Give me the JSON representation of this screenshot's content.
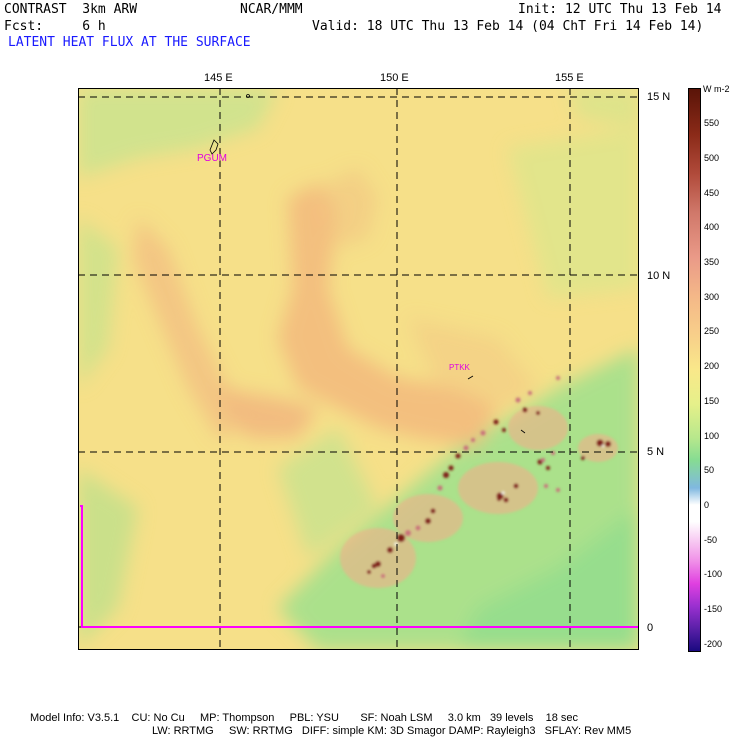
{
  "header": {
    "model": "CONTRAST  3km ARW",
    "org": "NCAR/MMM",
    "init": "Init: 12 UTC Thu 13 Feb 14",
    "fcst": "Fcst:     6 h",
    "valid": "Valid: 18 UTC Thu 13 Feb 14 (04 ChT Fri 14 Feb 14)",
    "field": "LATENT HEAT FLUX AT THE SURFACE"
  },
  "map": {
    "lon_labels": [
      "145 E",
      "150 E",
      "155 E"
    ],
    "lat_labels": [
      "15 N",
      "10 N",
      "5 N",
      "0"
    ],
    "stations": [
      "PGUM",
      "PTKK"
    ]
  },
  "colorbar": {
    "units": "W m-2",
    "labels": [
      "550",
      "500",
      "450",
      "400",
      "350",
      "300",
      "250",
      "200",
      "150",
      "100",
      "50",
      "0",
      "-50",
      "-100",
      "-150",
      "-200"
    ],
    "colors": {
      "strong_positive": "#6b1a0a",
      "high": "#c85a48",
      "moderate": "#f2a878",
      "low": "#f8e880",
      "near_zero_pos": "#8ee08a",
      "zero": "#ffffff",
      "negative": "#e040e0",
      "strong_negative": "#1a0a80"
    }
  },
  "footer": {
    "line1": "Model Info: V3.5.1    CU: No Cu     MP: Thompson     PBL: YSU       SF: Noah LSM     3.0 km   39 levels    18 sec",
    "line2": "LW: RRTMG     SW: RRTMG   DIFF: simple KM: 3D Smagor DAMP: Rayleigh3   SFLAY: Rev MM5"
  }
}
